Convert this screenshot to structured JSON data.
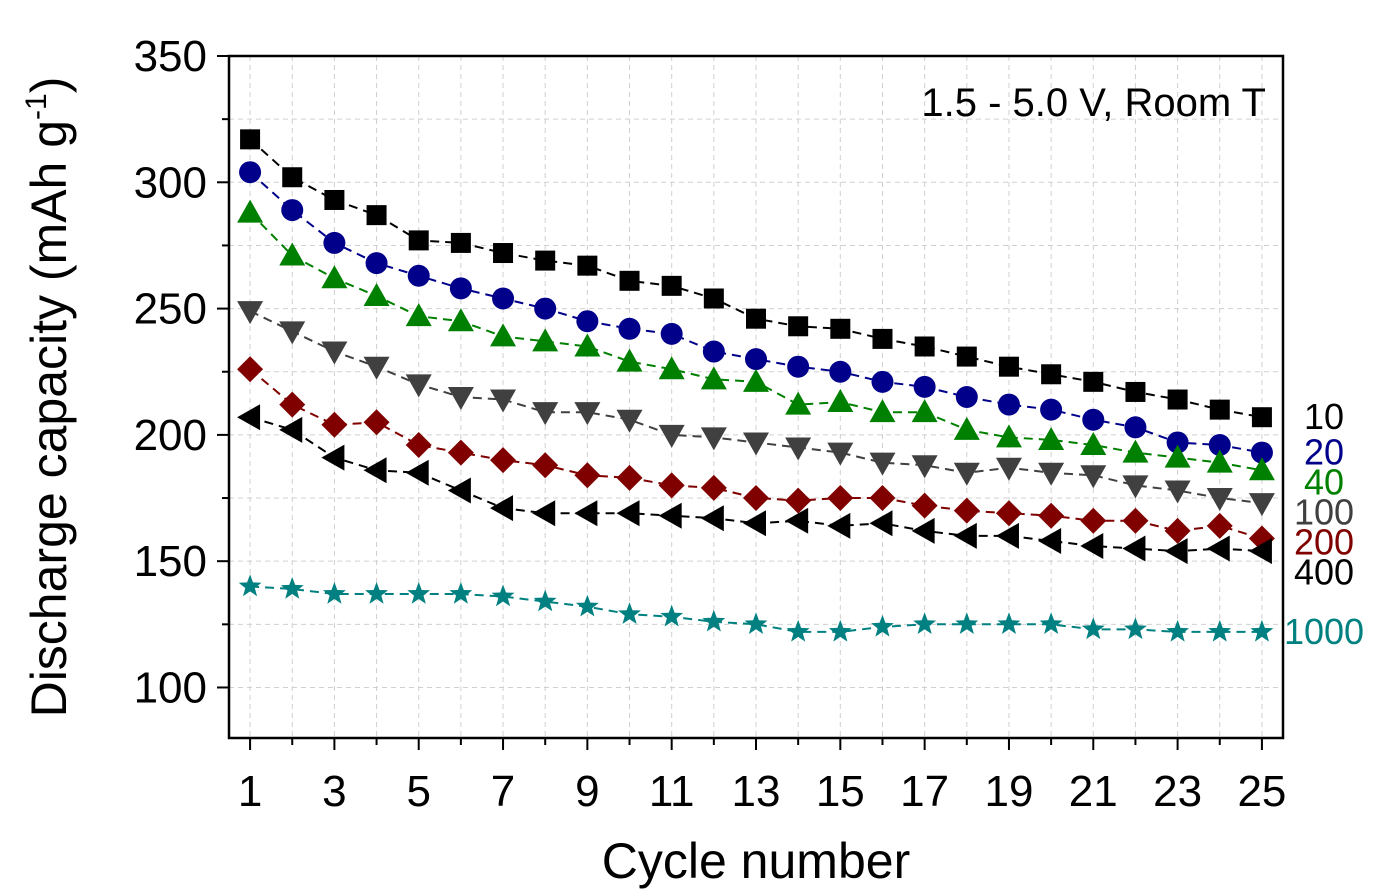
{
  "chart_data": {
    "type": "line",
    "title": "",
    "xlabel": "Cycle number",
    "ylabel_main": "Discharge capacity (mAh g",
    "ylabel_sup": "-1",
    "ylabel_close": ")",
    "annotation": "1.5 - 5.0 V, Room T",
    "xlim": [
      0.5,
      25.5
    ],
    "ylim": [
      80,
      350
    ],
    "grid": true,
    "x_ticks": [
      1,
      3,
      5,
      7,
      9,
      11,
      13,
      15,
      17,
      19,
      21,
      23,
      25
    ],
    "x_tick_labels": [
      "1",
      "3",
      "5",
      "7",
      "9",
      "11",
      "13",
      "15",
      "17",
      "19",
      "21",
      "23",
      "25"
    ],
    "y_ticks": [
      100,
      150,
      200,
      250,
      300,
      350
    ],
    "y_tick_labels": [
      "100",
      "150",
      "200",
      "250",
      "300",
      "350"
    ],
    "x": [
      1,
      2,
      3,
      4,
      5,
      6,
      7,
      8,
      9,
      10,
      11,
      12,
      13,
      14,
      15,
      16,
      17,
      18,
      19,
      20,
      21,
      22,
      23,
      24,
      25
    ],
    "series": [
      {
        "name": "10",
        "color": "#000000",
        "marker": "square",
        "values": [
          317,
          302,
          293,
          287,
          277,
          276,
          272,
          269,
          267,
          261,
          259,
          254,
          246,
          243,
          242,
          238,
          235,
          231,
          227,
          224,
          221,
          217,
          214,
          210,
          207
        ]
      },
      {
        "name": "20",
        "color": "#00008b",
        "marker": "circle",
        "values": [
          304,
          289,
          276,
          268,
          263,
          258,
          254,
          250,
          245,
          242,
          240,
          233,
          230,
          227,
          225,
          221,
          219,
          215,
          212,
          210,
          206,
          203,
          197,
          196,
          193
        ]
      },
      {
        "name": "40",
        "color": "#008000",
        "marker": "triangle-up",
        "values": [
          288,
          271,
          262,
          255,
          247,
          245,
          239,
          237,
          235,
          229,
          226,
          222,
          221,
          212,
          213,
          209,
          209,
          202,
          199,
          198,
          196,
          193,
          191,
          189,
          186
        ]
      },
      {
        "name": "100",
        "color": "#404040",
        "marker": "triangle-down",
        "values": [
          249,
          241,
          233,
          227,
          220,
          215,
          214,
          209,
          209,
          206,
          200,
          199,
          197,
          195,
          193,
          189,
          188,
          185,
          187,
          185,
          184,
          180,
          178,
          175,
          173
        ]
      },
      {
        "name": "200",
        "color": "#800000",
        "marker": "diamond",
        "values": [
          226,
          212,
          204,
          205,
          196,
          193,
          190,
          188,
          184,
          183,
          180,
          179,
          175,
          174,
          175,
          175,
          172,
          170,
          169,
          168,
          166,
          166,
          162,
          164,
          159
        ]
      },
      {
        "name": "400",
        "color": "#000000",
        "marker": "triangle-left",
        "values": [
          207,
          202,
          191,
          186,
          185,
          178,
          171,
          169,
          169,
          169,
          168,
          167,
          165,
          166,
          164,
          165,
          162,
          160,
          160,
          158,
          156,
          155,
          154,
          155,
          154
        ]
      },
      {
        "name": "1000",
        "color": "#008080",
        "marker": "star",
        "values": [
          140,
          139,
          137,
          137,
          137,
          137,
          136,
          134,
          132,
          129,
          128,
          126,
          125,
          122,
          122,
          124,
          125,
          125,
          125,
          125,
          123,
          123,
          122,
          122,
          122
        ]
      }
    ]
  }
}
